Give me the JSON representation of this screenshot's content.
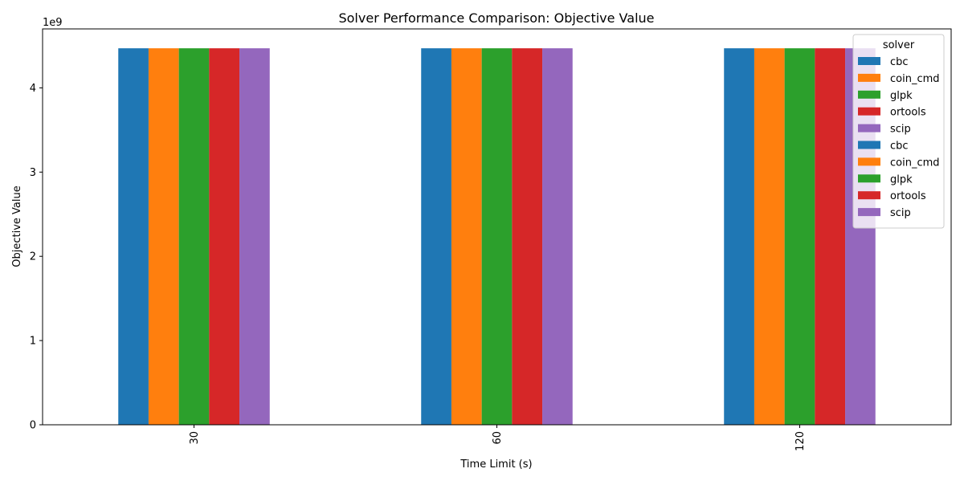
{
  "chart_data": {
    "type": "bar",
    "title": "Solver Performance Comparison: Objective Value",
    "xlabel": "Time Limit (s)",
    "ylabel": "Objective Value",
    "y_offset_label": "1e9",
    "categories": [
      "30",
      "60",
      "120"
    ],
    "yticks": [
      0,
      1,
      2,
      3,
      4
    ],
    "ylim": [
      0,
      4.7
    ],
    "grid": false,
    "legend": {
      "title": "solver",
      "placement": "top-right",
      "entries": [
        "cbc",
        "coin_cmd",
        "glpk",
        "ortools",
        "scip",
        "cbc",
        "coin_cmd",
        "glpk",
        "ortools",
        "scip"
      ]
    },
    "series": [
      {
        "name": "cbc",
        "color": "#1f77b4",
        "values": [
          4.47,
          4.47,
          4.47
        ]
      },
      {
        "name": "coin_cmd",
        "color": "#ff7f0e",
        "values": [
          4.47,
          4.47,
          4.47
        ]
      },
      {
        "name": "glpk",
        "color": "#2ca02c",
        "values": [
          4.47,
          4.47,
          4.47
        ]
      },
      {
        "name": "ortools",
        "color": "#d62728",
        "values": [
          4.47,
          4.47,
          4.47
        ]
      },
      {
        "name": "scip",
        "color": "#9467bd",
        "values": [
          4.47,
          4.47,
          4.47
        ]
      }
    ]
  }
}
